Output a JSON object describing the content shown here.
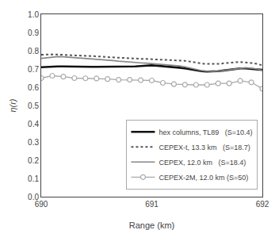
{
  "chart_data": {
    "type": "line",
    "xlabel": "Range (km)",
    "ylabel": "η(r)",
    "xlim": [
      690,
      692
    ],
    "ylim": [
      0.0,
      1.0
    ],
    "xticks": [
      690,
      691,
      692
    ],
    "yticks": [
      {
        "value": 0.0,
        "label": "0.0"
      },
      0.1,
      0.2,
      0.3,
      0.4,
      0.5,
      0.6,
      0.7,
      0.8,
      0.9,
      {
        "value": 1.0,
        "label": "1.0"
      }
    ],
    "grid": false,
    "legend": "lower right",
    "series": [
      {
        "name": "hex columns, TL89   (S=10.4)",
        "color": "#111111",
        "line_style": "solid",
        "x": [
          690.0,
          690.05,
          690.1,
          690.15,
          690.2,
          690.25,
          690.3,
          690.35,
          690.4,
          690.45,
          690.5,
          690.55,
          690.6,
          690.65,
          690.7,
          690.75,
          690.8,
          690.85,
          690.9,
          690.95,
          691.0,
          691.05,
          691.1,
          691.15,
          691.2,
          691.25,
          691.3,
          691.35,
          691.4,
          691.45,
          691.5,
          691.55,
          691.6,
          691.65,
          691.7,
          691.75,
          691.8,
          691.85,
          691.9,
          691.95,
          692.0
        ],
        "values": [
          0.71,
          0.712,
          0.713,
          0.714,
          0.714,
          0.713,
          0.713,
          0.712,
          0.712,
          0.712,
          0.712,
          0.712,
          0.712,
          0.712,
          0.712,
          0.712,
          0.713,
          0.714,
          0.716,
          0.718,
          0.72,
          0.718,
          0.716,
          0.713,
          0.71,
          0.707,
          0.703,
          0.698,
          0.692,
          0.688,
          0.686,
          0.686,
          0.688,
          0.692,
          0.696,
          0.7,
          0.703,
          0.703,
          0.7,
          0.697,
          0.695
        ]
      },
      {
        "name": "CEPEX-t, 13.3 km   (S=18.7)",
        "color": "#555555",
        "line_style": "dotted",
        "x": [
          690.0,
          690.05,
          690.1,
          690.15,
          690.2,
          690.25,
          690.3,
          690.35,
          690.4,
          690.45,
          690.5,
          690.55,
          690.6,
          690.65,
          690.7,
          690.75,
          690.8,
          690.85,
          690.9,
          690.95,
          691.0,
          691.05,
          691.1,
          691.15,
          691.2,
          691.25,
          691.3,
          691.35,
          691.4,
          691.45,
          691.5,
          691.55,
          691.6,
          691.65,
          691.7,
          691.75,
          691.8,
          691.85,
          691.9,
          691.95,
          692.0
        ],
        "values": [
          0.778,
          0.78,
          0.78,
          0.779,
          0.778,
          0.777,
          0.776,
          0.775,
          0.774,
          0.772,
          0.77,
          0.768,
          0.765,
          0.763,
          0.761,
          0.759,
          0.758,
          0.757,
          0.756,
          0.755,
          0.754,
          0.752,
          0.75,
          0.749,
          0.749,
          0.748,
          0.745,
          0.74,
          0.734,
          0.73,
          0.728,
          0.727,
          0.728,
          0.731,
          0.735,
          0.737,
          0.738,
          0.737,
          0.733,
          0.728,
          0.72
        ]
      },
      {
        "name": "CEPEX, 12.0 km   (S=18.4)",
        "color": "#888888",
        "line_style": "solid",
        "x": [
          690.0,
          690.05,
          690.1,
          690.15,
          690.2,
          690.25,
          690.3,
          690.35,
          690.4,
          690.45,
          690.5,
          690.55,
          690.6,
          690.65,
          690.7,
          690.75,
          690.8,
          690.85,
          690.9,
          690.95,
          691.0,
          691.05,
          691.1,
          691.15,
          691.2,
          691.25,
          691.3,
          691.35,
          691.4,
          691.45,
          691.5,
          691.55,
          691.6,
          691.65,
          691.7,
          691.75,
          691.8,
          691.85,
          691.9,
          691.95,
          692.0
        ],
        "values": [
          0.758,
          0.762,
          0.766,
          0.768,
          0.767,
          0.765,
          0.763,
          0.761,
          0.759,
          0.757,
          0.755,
          0.752,
          0.749,
          0.746,
          0.743,
          0.74,
          0.738,
          0.736,
          0.734,
          0.732,
          0.73,
          0.727,
          0.724,
          0.722,
          0.72,
          0.717,
          0.712,
          0.704,
          0.697,
          0.691,
          0.688,
          0.686,
          0.688,
          0.692,
          0.697,
          0.702,
          0.706,
          0.707,
          0.704,
          0.7,
          0.692
        ]
      },
      {
        "name": "CEPEX-2M, 12.0 km (S=50)",
        "color": "#aaaaaa",
        "line_style": "solid",
        "marker": "circle",
        "x": [
          690.0,
          690.1,
          690.2,
          690.3,
          690.4,
          690.5,
          690.6,
          690.7,
          690.8,
          690.9,
          691.0,
          691.1,
          691.2,
          691.3,
          691.4,
          691.5,
          691.6,
          691.7,
          691.8,
          691.9,
          692.0
        ],
        "values": [
          0.65,
          0.663,
          0.658,
          0.65,
          0.649,
          0.648,
          0.645,
          0.641,
          0.641,
          0.639,
          0.637,
          0.624,
          0.617,
          0.614,
          0.613,
          0.613,
          0.621,
          0.621,
          0.635,
          0.627,
          0.592
        ]
      }
    ]
  }
}
